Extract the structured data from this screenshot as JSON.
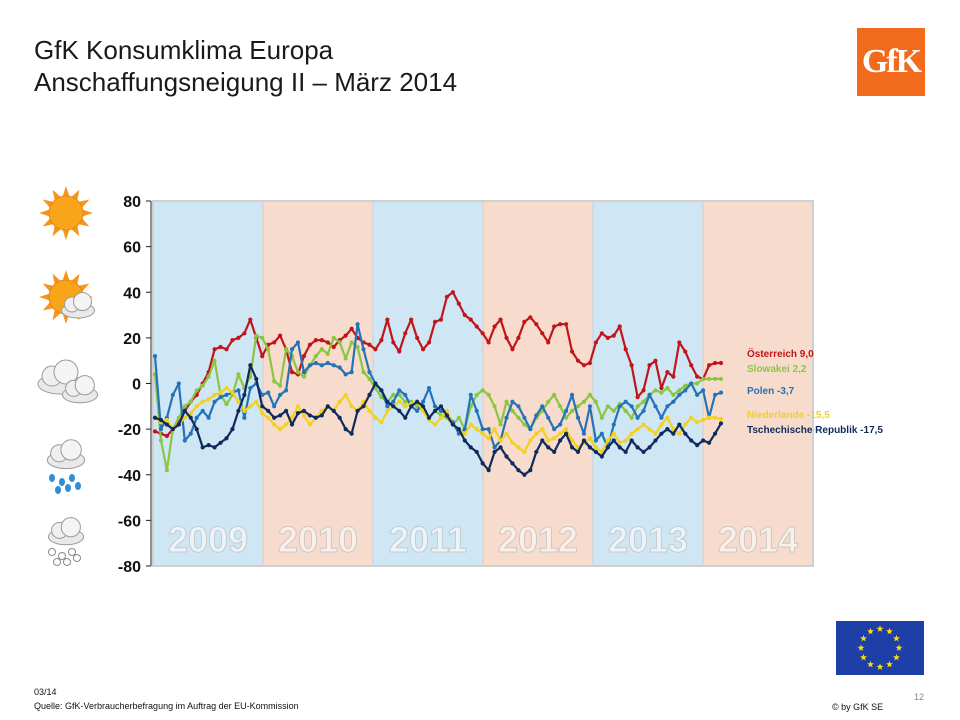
{
  "header": {
    "title_line1": "GfK Konsumklima Europa",
    "title_line2": "Anschaffungsneigung II – März 2014",
    "logo_text": "GfK"
  },
  "footer": {
    "date": "03/14",
    "source": "Quelle:  GfK-Verbraucherbefragung im Auftrag der EU-Kommission",
    "page": "12",
    "copyright": "© by GfK SE"
  },
  "weather_icons": [
    "sun-icon",
    "sun-cloud-icon",
    "cloud-icon",
    "rain-icon",
    "snow-icon"
  ],
  "chart_data": {
    "type": "line",
    "ylim": [
      -80,
      80
    ],
    "yticks": [
      "80",
      "60",
      "40",
      "20",
      "0",
      "-20",
      "-40",
      "-60",
      "-80"
    ],
    "year_bands": [
      {
        "label": "2009",
        "color": "#cfe6f5"
      },
      {
        "label": "2010",
        "color": "#f7dccd"
      },
      {
        "label": "2011",
        "color": "#cfe6f5"
      },
      {
        "label": "2012",
        "color": "#f7dccd"
      },
      {
        "label": "2013",
        "color": "#cfe6f5"
      },
      {
        "label": "2014",
        "color": "#f7dccd"
      }
    ],
    "x_range": [
      2009.0,
      2014.25
    ],
    "series": [
      {
        "name": "Österreich",
        "label": "Österreich 9,0",
        "color": "#c0151b",
        "values": [
          -21,
          -22,
          -23,
          -20,
          -17,
          -12,
          -8,
          -5,
          0,
          5,
          15,
          16,
          15,
          19,
          20,
          22,
          28,
          20,
          12,
          17,
          18,
          21,
          15,
          5,
          4,
          12,
          17,
          19,
          19,
          18,
          16,
          19,
          21,
          24,
          20,
          18,
          17,
          15,
          19,
          28,
          18,
          14,
          22,
          28,
          20,
          15,
          18,
          27,
          28,
          38,
          40,
          35,
          30,
          28,
          25,
          22,
          18,
          25,
          28,
          20,
          15,
          20,
          27,
          29,
          26,
          22,
          18,
          25,
          26,
          26,
          14,
          10,
          8,
          9,
          18,
          22,
          20,
          21,
          25,
          15,
          8,
          -6,
          -3,
          8,
          10,
          -2,
          5,
          3,
          18,
          14,
          8,
          3,
          2,
          8,
          9,
          9
        ]
      },
      {
        "name": "Slowakei",
        "label": "Slowakei 2,2",
        "color": "#8cc63f",
        "values": [
          4,
          -25,
          -38,
          -20,
          -15,
          -10,
          -8,
          -3,
          -1,
          3,
          10,
          -5,
          -9,
          -5,
          4,
          -2,
          3,
          21,
          20,
          15,
          1,
          -1,
          15,
          12,
          5,
          3,
          8,
          12,
          15,
          13,
          20,
          18,
          11,
          18,
          16,
          5,
          2,
          -2,
          -6,
          -8,
          -5,
          -5,
          -8,
          -8,
          -10,
          -12,
          -15,
          -12,
          -14,
          -15,
          -18,
          -15,
          -20,
          -10,
          -5,
          -3,
          -5,
          -10,
          -18,
          -8,
          -12,
          -15,
          -18,
          -20,
          -15,
          -12,
          -8,
          -5,
          -10,
          -15,
          -12,
          -10,
          -8,
          -5,
          -8,
          -15,
          -10,
          -12,
          -9,
          -12,
          -15,
          -10,
          -8,
          -5,
          -3,
          -4,
          -2,
          -5,
          -3,
          -1,
          0,
          0,
          2,
          2,
          2,
          2
        ]
      },
      {
        "name": "Polen",
        "label": "Polen -3,7",
        "color": "#2473b7",
        "values": [
          12,
          -20,
          -15,
          -5,
          0,
          -25,
          -22,
          -15,
          -12,
          -15,
          -8,
          -6,
          -5,
          -4,
          -3,
          -15,
          -2,
          0,
          -5,
          -4,
          -10,
          -5,
          -3,
          15,
          18,
          5,
          8,
          9,
          8,
          9,
          8,
          7,
          4,
          5,
          26,
          15,
          5,
          0,
          -3,
          -10,
          -8,
          -3,
          -5,
          -10,
          -12,
          -8,
          -2,
          -10,
          -12,
          -13,
          -17,
          -22,
          -20,
          -5,
          -12,
          -20,
          -20,
          -28,
          -25,
          -15,
          -8,
          -10,
          -15,
          -20,
          -14,
          -10,
          -15,
          -20,
          -18,
          -12,
          -5,
          -15,
          -22,
          -10,
          -25,
          -22,
          -28,
          -18,
          -10,
          -8,
          -10,
          -15,
          -12,
          -5,
          -10,
          -15,
          -10,
          -8,
          -5,
          -3,
          0,
          -5,
          -3,
          -15,
          -5,
          -4
        ]
      },
      {
        "name": "Niederlande",
        "label": "Niederlande -15,5",
        "color": "#f2d11f",
        "values": [
          -15,
          -17,
          -16,
          -20,
          -18,
          -15,
          -13,
          -10,
          -8,
          -7,
          -5,
          -4,
          -2,
          -4,
          -8,
          -12,
          -10,
          -8,
          -13,
          -15,
          -18,
          -20,
          -18,
          -15,
          -10,
          -14,
          -18,
          -15,
          -12,
          -10,
          -12,
          -8,
          -5,
          -10,
          -12,
          -8,
          -12,
          -15,
          -17,
          -12,
          -10,
          -8,
          -10,
          -9,
          -8,
          -12,
          -16,
          -18,
          -15,
          -12,
          -18,
          -20,
          -22,
          -18,
          -20,
          -22,
          -24,
          -20,
          -25,
          -22,
          -26,
          -28,
          -30,
          -25,
          -22,
          -20,
          -25,
          -24,
          -22,
          -20,
          -25,
          -28,
          -26,
          -24,
          -28,
          -30,
          -25,
          -22,
          -26,
          -25,
          -22,
          -20,
          -18,
          -20,
          -22,
          -18,
          -15,
          -20,
          -22,
          -18,
          -15,
          -17,
          -16,
          -15,
          -15,
          -15.5
        ]
      },
      {
        "name": "Tschechische Republik",
        "label": "Tschechische Republik -17,5",
        "color": "#102a5c",
        "values": [
          -15,
          -16,
          -18,
          -20,
          -18,
          -12,
          -15,
          -20,
          -28,
          -27,
          -28,
          -26,
          -24,
          -20,
          -12,
          -5,
          8,
          2,
          -10,
          -12,
          -15,
          -14,
          -12,
          -18,
          -13,
          -12,
          -14,
          -15,
          -14,
          -10,
          -12,
          -15,
          -20,
          -22,
          -12,
          -10,
          -5,
          0,
          -3,
          -8,
          -10,
          -12,
          -15,
          -10,
          -8,
          -10,
          -15,
          -12,
          -10,
          -14,
          -18,
          -20,
          -25,
          -28,
          -30,
          -35,
          -38,
          -30,
          -28,
          -32,
          -35,
          -38,
          -40,
          -38,
          -30,
          -25,
          -28,
          -30,
          -25,
          -22,
          -28,
          -30,
          -25,
          -28,
          -30,
          -32,
          -28,
          -25,
          -28,
          -30,
          -25,
          -28,
          -30,
          -28,
          -25,
          -22,
          -20,
          -22,
          -18,
          -22,
          -25,
          -27,
          -25,
          -26,
          -22,
          -17.5
        ]
      }
    ]
  }
}
